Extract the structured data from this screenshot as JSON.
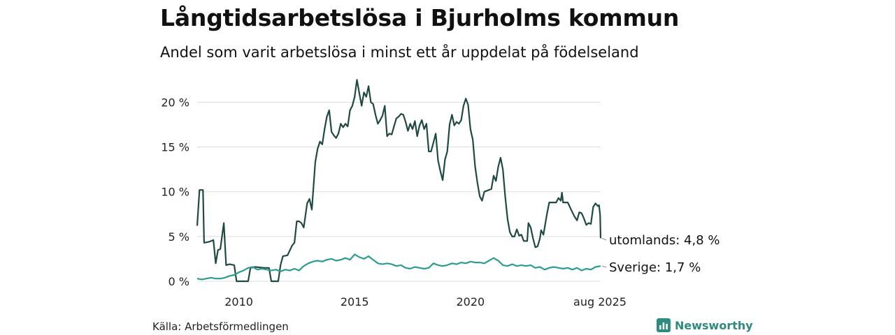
{
  "header": {
    "title": "Långtidsarbetslösa i Bjurholms kommun",
    "subtitle": "Andel som varit arbetslösa i minst ett år uppdelat på födelseland"
  },
  "footer": {
    "source": "Källa: Arbetsförmedlingen",
    "brand": "Newsworthy",
    "brand_icon": "newsworthy-logo-icon"
  },
  "colors": {
    "utomlands": "#1f4a42",
    "sverige": "#2a9d8f",
    "grid": "#dcdcdc",
    "brand": "#2e8b7e"
  },
  "chart_data": {
    "type": "line",
    "y_tick_labels": [
      "0 %",
      "5 %",
      "10 %",
      "15 %",
      "20 %"
    ],
    "y_ticks": [
      0,
      5,
      10,
      15,
      20
    ],
    "x_tick_labels": [
      "2010",
      "2015",
      "2020",
      "aug 2025"
    ],
    "x_ticks": [
      2010.0,
      2015.0,
      2020.0,
      2025.62
    ],
    "xlim": [
      2008.2,
      2025.62
    ],
    "ylim": [
      0,
      23
    ],
    "grid": "horizontal",
    "legend": "end-labels",
    "series": [
      {
        "key": "utomlands",
        "end_label": "utomlands: 4,8 %",
        "points": [
          [
            2008.2,
            6.2
          ],
          [
            2008.3,
            10.2
          ],
          [
            2008.45,
            10.2
          ],
          [
            2008.5,
            4.3
          ],
          [
            2008.7,
            4.4
          ],
          [
            2008.9,
            4.6
          ],
          [
            2009.0,
            2.0
          ],
          [
            2009.1,
            3.5
          ],
          [
            2009.2,
            3.6
          ],
          [
            2009.35,
            6.5
          ],
          [
            2009.45,
            1.8
          ],
          [
            2009.6,
            1.9
          ],
          [
            2009.8,
            1.8
          ],
          [
            2009.9,
            0.0
          ],
          [
            2010.4,
            0.0
          ],
          [
            2010.5,
            1.5
          ],
          [
            2010.7,
            1.6
          ],
          [
            2011.1,
            1.5
          ],
          [
            2011.3,
            1.5
          ],
          [
            2011.4,
            0.0
          ],
          [
            2011.7,
            0.0
          ],
          [
            2011.8,
            1.8
          ],
          [
            2011.9,
            2.8
          ],
          [
            2012.1,
            2.9
          ],
          [
            2012.3,
            4.0
          ],
          [
            2012.4,
            4.3
          ],
          [
            2012.5,
            6.7
          ],
          [
            2012.6,
            6.7
          ],
          [
            2012.7,
            6.5
          ],
          [
            2012.8,
            6.0
          ],
          [
            2012.95,
            8.7
          ],
          [
            2013.05,
            9.2
          ],
          [
            2013.15,
            8.0
          ],
          [
            2013.3,
            13.3
          ],
          [
            2013.4,
            14.8
          ],
          [
            2013.5,
            15.6
          ],
          [
            2013.6,
            15.3
          ],
          [
            2013.7,
            17.0
          ],
          [
            2013.8,
            18.4
          ],
          [
            2013.9,
            19.1
          ],
          [
            2014.0,
            16.7
          ],
          [
            2014.1,
            16.3
          ],
          [
            2014.2,
            16.0
          ],
          [
            2014.3,
            16.5
          ],
          [
            2014.4,
            17.6
          ],
          [
            2014.5,
            17.2
          ],
          [
            2014.6,
            17.6
          ],
          [
            2014.7,
            17.3
          ],
          [
            2014.8,
            19.1
          ],
          [
            2014.9,
            19.6
          ],
          [
            2015.0,
            20.6
          ],
          [
            2015.1,
            22.5
          ],
          [
            2015.2,
            21.0
          ],
          [
            2015.3,
            19.6
          ],
          [
            2015.4,
            21.1
          ],
          [
            2015.5,
            20.6
          ],
          [
            2015.6,
            21.8
          ],
          [
            2015.7,
            20.0
          ],
          [
            2015.8,
            19.8
          ],
          [
            2015.9,
            18.6
          ],
          [
            2016.0,
            17.6
          ],
          [
            2016.1,
            18.0
          ],
          [
            2016.2,
            18.5
          ],
          [
            2016.3,
            19.6
          ],
          [
            2016.4,
            16.2
          ],
          [
            2016.5,
            16.5
          ],
          [
            2016.6,
            16.4
          ],
          [
            2016.7,
            17.3
          ],
          [
            2016.8,
            18.2
          ],
          [
            2016.9,
            18.4
          ],
          [
            2017.0,
            18.7
          ],
          [
            2017.1,
            18.6
          ],
          [
            2017.2,
            17.8
          ],
          [
            2017.3,
            16.8
          ],
          [
            2017.4,
            17.6
          ],
          [
            2017.5,
            17.0
          ],
          [
            2017.6,
            17.9
          ],
          [
            2017.7,
            16.2
          ],
          [
            2017.8,
            17.4
          ],
          [
            2017.9,
            18.0
          ],
          [
            2018.0,
            17.0
          ],
          [
            2018.1,
            17.6
          ],
          [
            2018.2,
            14.5
          ],
          [
            2018.3,
            14.5
          ],
          [
            2018.4,
            15.5
          ],
          [
            2018.5,
            16.5
          ],
          [
            2018.6,
            13.5
          ],
          [
            2018.7,
            12.3
          ],
          [
            2018.8,
            11.3
          ],
          [
            2018.9,
            13.6
          ],
          [
            2019.0,
            14.5
          ],
          [
            2019.1,
            17.5
          ],
          [
            2019.2,
            18.6
          ],
          [
            2019.3,
            17.4
          ],
          [
            2019.4,
            17.8
          ],
          [
            2019.5,
            17.6
          ],
          [
            2019.6,
            18.0
          ],
          [
            2019.7,
            19.6
          ],
          [
            2019.8,
            20.4
          ],
          [
            2019.9,
            19.7
          ],
          [
            2020.0,
            17.0
          ],
          [
            2020.1,
            15.8
          ],
          [
            2020.2,
            12.8
          ],
          [
            2020.3,
            11.0
          ],
          [
            2020.4,
            9.5
          ],
          [
            2020.5,
            9.0
          ],
          [
            2020.6,
            10.0
          ],
          [
            2020.9,
            10.3
          ],
          [
            2021.0,
            11.8
          ],
          [
            2021.1,
            11.2
          ],
          [
            2021.2,
            12.8
          ],
          [
            2021.3,
            13.8
          ],
          [
            2021.4,
            12.5
          ],
          [
            2021.5,
            9.5
          ],
          [
            2021.6,
            7.0
          ],
          [
            2021.7,
            5.5
          ],
          [
            2021.8,
            5.0
          ],
          [
            2021.9,
            5.0
          ],
          [
            2022.0,
            5.8
          ],
          [
            2022.1,
            5.1
          ],
          [
            2022.2,
            5.2
          ],
          [
            2022.3,
            4.5
          ],
          [
            2022.45,
            4.5
          ],
          [
            2022.5,
            6.5
          ],
          [
            2022.6,
            6.0
          ],
          [
            2022.7,
            4.8
          ],
          [
            2022.8,
            3.8
          ],
          [
            2022.9,
            3.9
          ],
          [
            2023.0,
            4.8
          ],
          [
            2023.05,
            5.7
          ],
          [
            2023.15,
            5.2
          ],
          [
            2023.3,
            7.5
          ],
          [
            2023.4,
            8.8
          ],
          [
            2023.7,
            8.8
          ],
          [
            2023.8,
            9.3
          ],
          [
            2023.9,
            9.0
          ],
          [
            2023.95,
            9.9
          ],
          [
            2024.0,
            8.8
          ],
          [
            2024.2,
            8.8
          ],
          [
            2024.4,
            7.7
          ],
          [
            2024.5,
            7.2
          ],
          [
            2024.6,
            6.8
          ],
          [
            2024.7,
            7.7
          ],
          [
            2024.8,
            7.6
          ],
          [
            2024.9,
            7.0
          ],
          [
            2025.0,
            6.3
          ],
          [
            2025.1,
            6.5
          ],
          [
            2025.2,
            6.4
          ],
          [
            2025.3,
            8.3
          ],
          [
            2025.4,
            8.7
          ],
          [
            2025.5,
            8.4
          ],
          [
            2025.55,
            8.5
          ],
          [
            2025.6,
            7.4
          ],
          [
            2025.62,
            4.8
          ]
        ]
      },
      {
        "key": "sverige",
        "end_label": "Sverige: 1,7 %",
        "points": [
          [
            2008.2,
            0.3
          ],
          [
            2008.4,
            0.2
          ],
          [
            2008.6,
            0.3
          ],
          [
            2008.8,
            0.4
          ],
          [
            2009.0,
            0.3
          ],
          [
            2009.2,
            0.3
          ],
          [
            2009.4,
            0.4
          ],
          [
            2009.6,
            0.6
          ],
          [
            2009.8,
            0.7
          ],
          [
            2010.0,
            1.0
          ],
          [
            2010.2,
            1.2
          ],
          [
            2010.4,
            1.5
          ],
          [
            2010.6,
            1.6
          ],
          [
            2010.8,
            1.3
          ],
          [
            2011.0,
            1.4
          ],
          [
            2011.2,
            1.3
          ],
          [
            2011.4,
            1.2
          ],
          [
            2011.6,
            1.3
          ],
          [
            2011.8,
            1.1
          ],
          [
            2012.0,
            1.3
          ],
          [
            2012.2,
            1.2
          ],
          [
            2012.4,
            1.4
          ],
          [
            2012.6,
            1.2
          ],
          [
            2012.8,
            1.7
          ],
          [
            2013.0,
            2.0
          ],
          [
            2013.2,
            2.2
          ],
          [
            2013.4,
            2.3
          ],
          [
            2013.6,
            2.2
          ],
          [
            2013.8,
            2.4
          ],
          [
            2014.0,
            2.5
          ],
          [
            2014.2,
            2.3
          ],
          [
            2014.4,
            2.4
          ],
          [
            2014.6,
            2.6
          ],
          [
            2014.8,
            2.4
          ],
          [
            2015.0,
            3.0
          ],
          [
            2015.2,
            2.7
          ],
          [
            2015.4,
            2.5
          ],
          [
            2015.6,
            2.8
          ],
          [
            2015.8,
            2.4
          ],
          [
            2016.0,
            2.0
          ],
          [
            2016.2,
            1.9
          ],
          [
            2016.4,
            2.0
          ],
          [
            2016.6,
            1.9
          ],
          [
            2016.8,
            1.7
          ],
          [
            2017.0,
            1.8
          ],
          [
            2017.2,
            1.5
          ],
          [
            2017.4,
            1.4
          ],
          [
            2017.6,
            1.6
          ],
          [
            2017.8,
            1.5
          ],
          [
            2018.0,
            1.4
          ],
          [
            2018.2,
            1.5
          ],
          [
            2018.4,
            2.0
          ],
          [
            2018.6,
            1.8
          ],
          [
            2018.8,
            1.7
          ],
          [
            2019.0,
            1.8
          ],
          [
            2019.2,
            2.0
          ],
          [
            2019.4,
            1.9
          ],
          [
            2019.6,
            2.1
          ],
          [
            2019.8,
            2.0
          ],
          [
            2020.0,
            2.2
          ],
          [
            2020.2,
            2.1
          ],
          [
            2020.4,
            2.1
          ],
          [
            2020.6,
            2.0
          ],
          [
            2020.8,
            2.3
          ],
          [
            2021.0,
            2.6
          ],
          [
            2021.2,
            2.3
          ],
          [
            2021.4,
            1.8
          ],
          [
            2021.6,
            1.7
          ],
          [
            2021.8,
            1.9
          ],
          [
            2022.0,
            1.7
          ],
          [
            2022.2,
            1.8
          ],
          [
            2022.4,
            1.7
          ],
          [
            2022.6,
            1.8
          ],
          [
            2022.8,
            1.5
          ],
          [
            2023.0,
            1.6
          ],
          [
            2023.2,
            1.3
          ],
          [
            2023.4,
            1.5
          ],
          [
            2023.6,
            1.6
          ],
          [
            2023.8,
            1.5
          ],
          [
            2024.0,
            1.4
          ],
          [
            2024.2,
            1.5
          ],
          [
            2024.4,
            1.3
          ],
          [
            2024.6,
            1.5
          ],
          [
            2024.8,
            1.2
          ],
          [
            2025.0,
            1.4
          ],
          [
            2025.2,
            1.3
          ],
          [
            2025.4,
            1.6
          ],
          [
            2025.62,
            1.7
          ]
        ]
      }
    ]
  }
}
